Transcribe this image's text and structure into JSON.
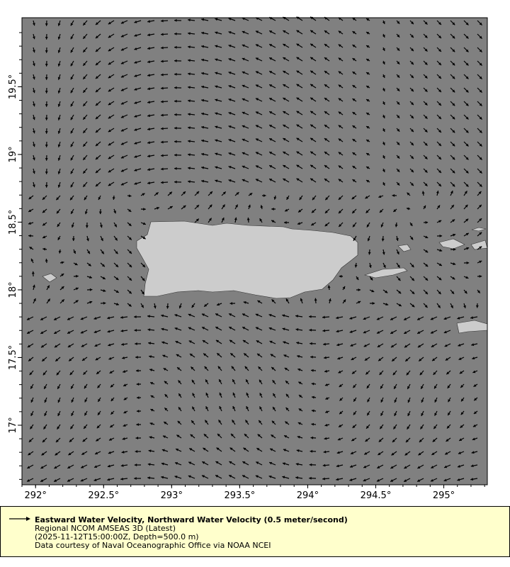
{
  "map": {
    "lon_ticks": [
      "292°",
      "292.5°",
      "293°",
      "293.5°",
      "294°",
      "294.5°",
      "295°"
    ],
    "lat_ticks": [
      "17°",
      "17.5°",
      "18°",
      "18.5°",
      "19°",
      "19.5°"
    ],
    "lon_values": [
      292,
      292.5,
      293,
      293.5,
      294,
      294.5,
      295
    ],
    "lat_values": [
      17,
      17.5,
      18,
      18.5,
      19,
      19.5
    ],
    "lon_range": [
      291.9,
      295.32
    ],
    "lat_range": [
      16.56,
      20.01
    ],
    "colors": {
      "ocean": "#808080",
      "land": "#cccccc",
      "vectors": "#000000",
      "legend_bg": "#ffffcc"
    }
  },
  "legend": {
    "title": "Eastward Water Velocity, Northward Water Velocity (0.5 meter/second)",
    "dataset": "Regional NCOM AMSEAS 3D (Latest)",
    "time_depth": "(2025-11-12T15:00:00Z, Depth=500.0 m)",
    "credit": "Data courtesy of Naval Oceanographic Office via NOAA NCEI"
  }
}
